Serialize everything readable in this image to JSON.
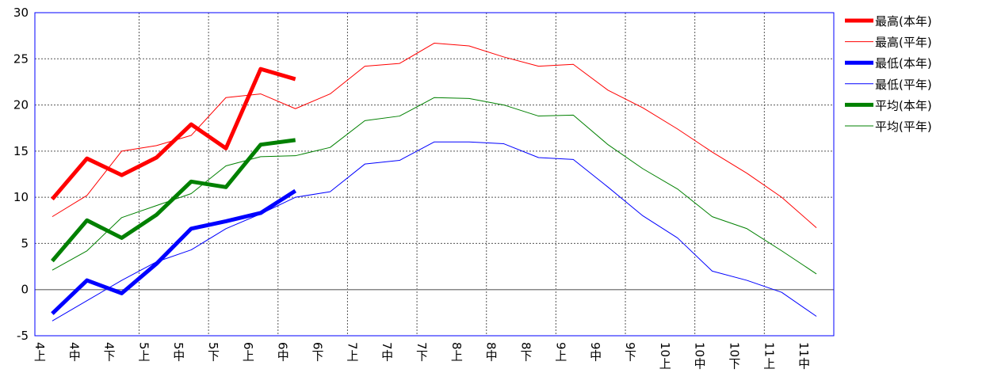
{
  "chart_data": {
    "type": "line",
    "categories": [
      "4上",
      "4中",
      "4下",
      "5上",
      "5中",
      "5下",
      "6上",
      "6中",
      "6下",
      "7上",
      "7中",
      "7下",
      "8上",
      "8中",
      "8下",
      "9上",
      "9中",
      "9下",
      "10上",
      "10中",
      "10下",
      "11上",
      "11中"
    ],
    "series": [
      {
        "name": "最高(本年)",
        "color": "#ff0000",
        "line_width": 5,
        "values": [
          9.8,
          14.2,
          12.4,
          14.3,
          17.9,
          15.3,
          23.9,
          22.8,
          null,
          null,
          null,
          null,
          null,
          null,
          null,
          null,
          null,
          null,
          null,
          null,
          null,
          null,
          null
        ]
      },
      {
        "name": "最高(平年)",
        "color": "#ff0000",
        "line_width": 1,
        "values": [
          7.9,
          10.2,
          15.0,
          15.6,
          16.7,
          20.8,
          21.2,
          19.6,
          21.2,
          24.2,
          24.5,
          26.7,
          26.4,
          25.2,
          24.2,
          24.4,
          21.6,
          19.7,
          17.4,
          14.9,
          12.6,
          10.0,
          6.7
        ]
      },
      {
        "name": "最低(本年)",
        "color": "#0000ff",
        "line_width": 5,
        "values": [
          -2.6,
          1.0,
          -0.4,
          2.8,
          6.6,
          7.4,
          8.3,
          10.7,
          null,
          null,
          null,
          null,
          null,
          null,
          null,
          null,
          null,
          null,
          null,
          null,
          null,
          null,
          null
        ]
      },
      {
        "name": "最低(平年)",
        "color": "#0000ff",
        "line_width": 1,
        "values": [
          -3.4,
          -1.2,
          1.0,
          3.0,
          4.3,
          6.6,
          8.2,
          10.0,
          10.6,
          13.6,
          14.0,
          16.0,
          16.0,
          15.8,
          14.3,
          14.1,
          11.1,
          8.0,
          5.6,
          2.0,
          1.0,
          -0.3,
          -2.9
        ]
      },
      {
        "name": "平均(本年)",
        "color": "#008000",
        "line_width": 5,
        "values": [
          3.1,
          7.5,
          5.6,
          8.1,
          11.7,
          11.1,
          15.7,
          16.2,
          null,
          null,
          null,
          null,
          null,
          null,
          null,
          null,
          null,
          null,
          null,
          null,
          null,
          null,
          null
        ]
      },
      {
        "name": "平均(平年)",
        "color": "#008000",
        "line_width": 1,
        "values": [
          2.1,
          4.2,
          7.8,
          9.1,
          10.4,
          13.4,
          14.4,
          14.5,
          15.4,
          18.3,
          18.8,
          20.8,
          20.7,
          20.0,
          18.8,
          18.9,
          15.7,
          13.1,
          10.9,
          7.9,
          6.6,
          4.2,
          1.7
        ]
      }
    ],
    "ylim": [
      -5,
      30
    ],
    "yticks": [
      -5,
      0,
      5,
      10,
      15,
      20,
      25,
      30
    ],
    "grid": true
  }
}
